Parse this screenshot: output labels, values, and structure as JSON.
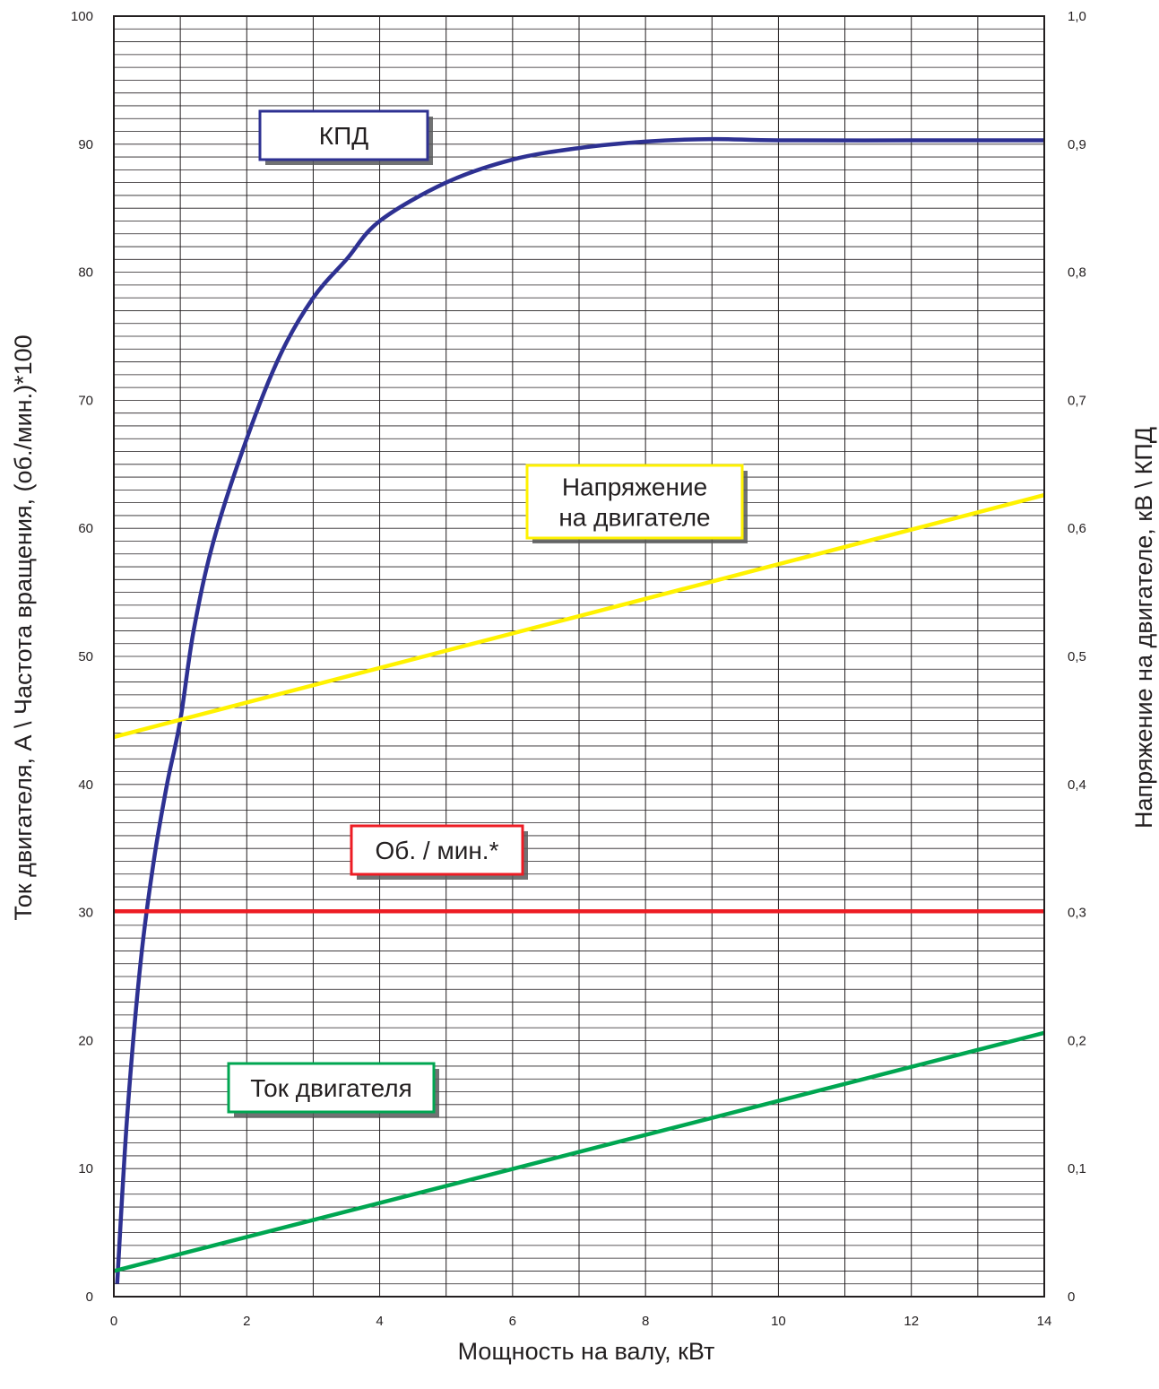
{
  "chart_data": {
    "type": "line",
    "xlabel": "Мощность на валу, кВт",
    "ylabel_left": "Ток двигателя, А \\ Частота вращения, (об./мин.)*100",
    "ylabel_right": "Напряжение на двигателе, кВ \\ КПД",
    "xlim": [
      0,
      14
    ],
    "ylim_left": [
      0,
      100
    ],
    "ylim_right": [
      0,
      1.0
    ],
    "x_ticks": [
      "0",
      "2",
      "4",
      "6",
      "8",
      "10",
      "12",
      "14"
    ],
    "y_left_ticks": [
      "0",
      "10",
      "20",
      "30",
      "40",
      "50",
      "60",
      "70",
      "80",
      "90",
      "100"
    ],
    "y_right_ticks": [
      "0",
      "0,1",
      "0,2",
      "0,3",
      "0,4",
      "0,5",
      "0,6",
      "0,7",
      "0,8",
      "0,9",
      "1,0"
    ],
    "grid": true,
    "series": [
      {
        "name": "КПД",
        "label_lines": [
          "КПД"
        ],
        "axis": "right",
        "color": "#2e3192",
        "x": [
          0.05,
          0.2,
          0.4,
          0.6,
          0.8,
          1.0,
          1.2,
          1.5,
          2.0,
          2.5,
          3.0,
          3.5,
          4.0,
          5.0,
          6.0,
          7.0,
          8.0,
          9.0,
          10.0,
          12.0,
          14.0
        ],
        "values": [
          0.01,
          0.14,
          0.26,
          0.34,
          0.4,
          0.45,
          0.52,
          0.59,
          0.67,
          0.735,
          0.78,
          0.81,
          0.84,
          0.87,
          0.888,
          0.897,
          0.902,
          0.904,
          0.903,
          0.903,
          0.903
        ]
      },
      {
        "name": "Напряжение на двигателе",
        "label_lines": [
          "Напряжение",
          "на двигателе"
        ],
        "axis": "right",
        "color": "#fff200",
        "x": [
          0,
          14
        ],
        "values": [
          0.437,
          0.626
        ]
      },
      {
        "name": "Об. / мин.*",
        "label_lines": [
          "Об. / мин.*"
        ],
        "axis": "left",
        "color": "#ed1c24",
        "x": [
          0,
          14
        ],
        "values": [
          30.1,
          30.1
        ]
      },
      {
        "name": "Ток двигателя",
        "label_lines": [
          "Ток двигателя"
        ],
        "axis": "left",
        "color": "#00a651",
        "x": [
          0,
          14
        ],
        "values": [
          2.0,
          20.6
        ]
      }
    ]
  }
}
